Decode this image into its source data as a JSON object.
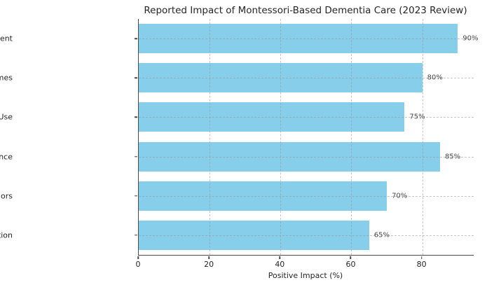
{
  "chart_data": {
    "type": "bar",
    "orientation": "horizontal",
    "title": "Reported Impact of Montessori-Based Dementia Care (2023 Review)",
    "categories": [
      "Resident Engagement",
      "Mental Health Outcomes",
      "Reduction in Psychotropic Use",
      "Feeding/Mealtime Independence",
      "Responsive Behaviors",
      "Staff Satisfaction"
    ],
    "values": [
      90,
      80,
      75,
      85,
      70,
      65
    ],
    "value_labels": [
      "90%",
      "80%",
      "75%",
      "85%",
      "70%",
      "65%"
    ],
    "xlabel": "Positive Impact (%)",
    "ylabel": "",
    "xlim": [
      0,
      94.5
    ],
    "xticks": [
      0,
      20,
      40,
      60,
      80
    ],
    "grid": true,
    "legend": "none",
    "bar_color": "#87CEEB",
    "spine_color": "#4a4a4a",
    "text_color": "#262626",
    "value_label_color": "#4a4a4a",
    "grid_color": "rgba(150,150,150,0.55)"
  }
}
